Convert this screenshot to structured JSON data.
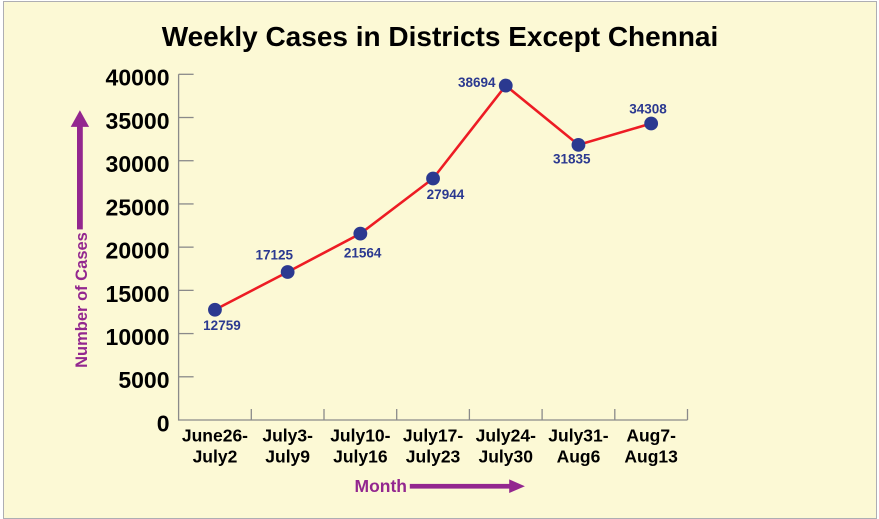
{
  "chart_data": {
    "type": "line",
    "title": "Weekly Cases in Districts Except Chennai",
    "xlabel": "Month",
    "ylabel": "Number of Cases",
    "categories": [
      [
        "June26-",
        "July2"
      ],
      [
        "July3-",
        "July9"
      ],
      [
        "July10-",
        "July16"
      ],
      [
        "July17-",
        "July23"
      ],
      [
        "July24-",
        "July30"
      ],
      [
        "July31-",
        "Aug6"
      ],
      [
        "Aug7-",
        "Aug13"
      ]
    ],
    "values": [
      12759,
      17125,
      21564,
      27944,
      38694,
      31835,
      34308
    ],
    "data_labels": [
      "12759",
      "17125",
      "21564",
      "27944",
      "38694",
      "31835",
      "34308"
    ],
    "ylim": [
      0,
      40000
    ],
    "ytick_step": 5000,
    "ytick_labels": [
      "0",
      "5000",
      "10000",
      "15000",
      "20000",
      "25000",
      "30000",
      "35000",
      "40000"
    ],
    "grid": false,
    "legend": false,
    "label_offsets": [
      [
        7.0,
        15.8
      ],
      [
        -13.4,
        -17.1
      ],
      [
        2.3,
        19.2
      ],
      [
        12.4,
        15.7
      ],
      [
        -29.0,
        -3.2
      ],
      [
        -6.7,
        14.0
      ],
      [
        -3.1,
        -14.5
      ]
    ],
    "colors": {
      "line": "#ed1c24",
      "marker": "#2b3990",
      "data_label": "#2b3990",
      "axis": "#8a8a8a",
      "tick_label": "#000000",
      "title": "#000000",
      "axis_title": "#93278f",
      "background": "#fcf9d5",
      "page": "#ffffff",
      "border": "#aeaeb3"
    }
  }
}
